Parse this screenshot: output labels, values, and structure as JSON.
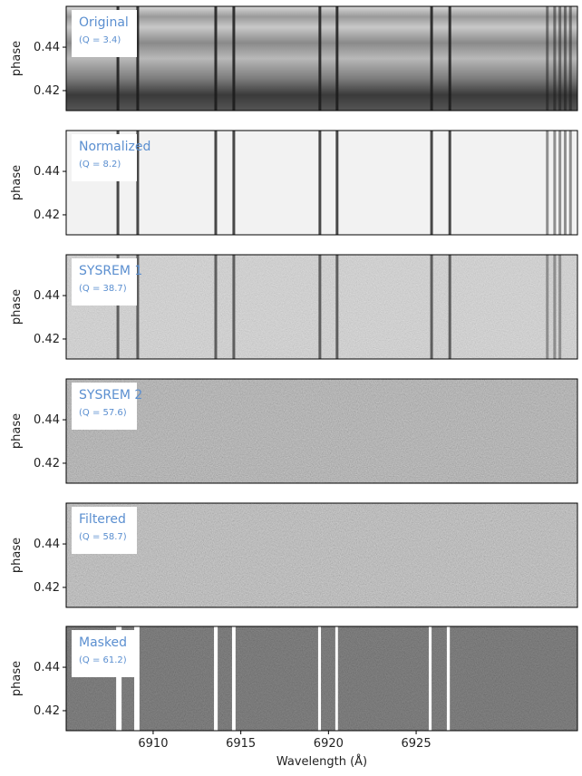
{
  "chart_data": [
    {
      "type": "image",
      "title": "Original",
      "subtitle": "(Q = 3.4)",
      "ylabel": "phase",
      "color": "#a8a8a8",
      "shade": "stripes",
      "noise": false,
      "line_color": "#1a1a1a",
      "xlim": [
        6905.04,
        6934.2
      ],
      "ylim": [
        0.4108,
        0.4588
      ],
      "yticks": [
        0.42,
        0.44
      ],
      "lines": [
        6907.99,
        6909.12,
        6913.57,
        6914.6,
        6919.51,
        6920.49,
        6925.88,
        6926.92,
        6932.48,
        6932.9,
        6933.2,
        6933.5,
        6933.8
      ]
    },
    {
      "type": "image",
      "title": "Normalized",
      "subtitle": "(Q = 8.2)",
      "ylabel": "phase",
      "color": "#f2f2f2",
      "noise": false,
      "line_color": "#2a2a2a",
      "xlim": [
        6905.04,
        6934.2
      ],
      "ylim": [
        0.4108,
        0.4588
      ],
      "yticks": [
        0.42,
        0.44
      ],
      "lines": [
        6907.99,
        6909.12,
        6913.57,
        6914.6,
        6919.51,
        6920.49,
        6925.88,
        6926.92,
        6932.48,
        6932.9,
        6933.2,
        6933.5,
        6933.8
      ]
    },
    {
      "type": "image",
      "title": "SYSREM 1",
      "subtitle": "(Q = 38.7)",
      "ylabel": "phase",
      "color": "#cfcfcf",
      "noise": true,
      "line_color": "#4a4a4a",
      "xlim": [
        6905.04,
        6934.2
      ],
      "ylim": [
        0.4108,
        0.4588
      ],
      "yticks": [
        0.42,
        0.44
      ],
      "lines": [
        6907.99,
        6909.12,
        6913.57,
        6914.6,
        6919.51,
        6920.49,
        6925.88,
        6926.92,
        6932.48,
        6932.9,
        6933.2
      ]
    },
    {
      "type": "image",
      "title": "SYSREM 2",
      "subtitle": "(Q = 57.6)",
      "ylabel": "phase",
      "color": "#b4b4b4",
      "noise": true,
      "xlim": [
        6905.04,
        6934.2
      ],
      "ylim": [
        0.4108,
        0.4588
      ],
      "yticks": [
        0.42,
        0.44
      ],
      "lines": []
    },
    {
      "type": "image",
      "title": "Filtered",
      "subtitle": "(Q = 58.7)",
      "ylabel": "phase",
      "color": "#bcbcbc",
      "noise": true,
      "xlim": [
        6905.04,
        6934.2
      ],
      "ylim": [
        0.4108,
        0.4588
      ],
      "yticks": [
        0.42,
        0.44
      ],
      "lines": []
    },
    {
      "type": "image",
      "title": "Masked",
      "subtitle": "(Q = 61.2)",
      "ylabel": "phase",
      "color": "#7a7a7a",
      "noise": true,
      "xlim": [
        6905.04,
        6934.2
      ],
      "ylim": [
        0.4108,
        0.4588
      ],
      "yticks": [
        0.42,
        0.44
      ],
      "lines": [],
      "masks": [
        [
          6907.89,
          6908.2
        ],
        [
          6908.92,
          6909.22
        ],
        [
          6913.47,
          6913.68
        ],
        [
          6914.5,
          6914.7
        ],
        [
          6919.41,
          6919.57
        ],
        [
          6920.39,
          6920.54
        ],
        [
          6925.72,
          6925.88
        ],
        [
          6926.75,
          6926.92
        ]
      ],
      "xticks": [
        6910,
        6915,
        6920,
        6925
      ],
      "xlabel": "Wavelength (Å)"
    }
  ]
}
